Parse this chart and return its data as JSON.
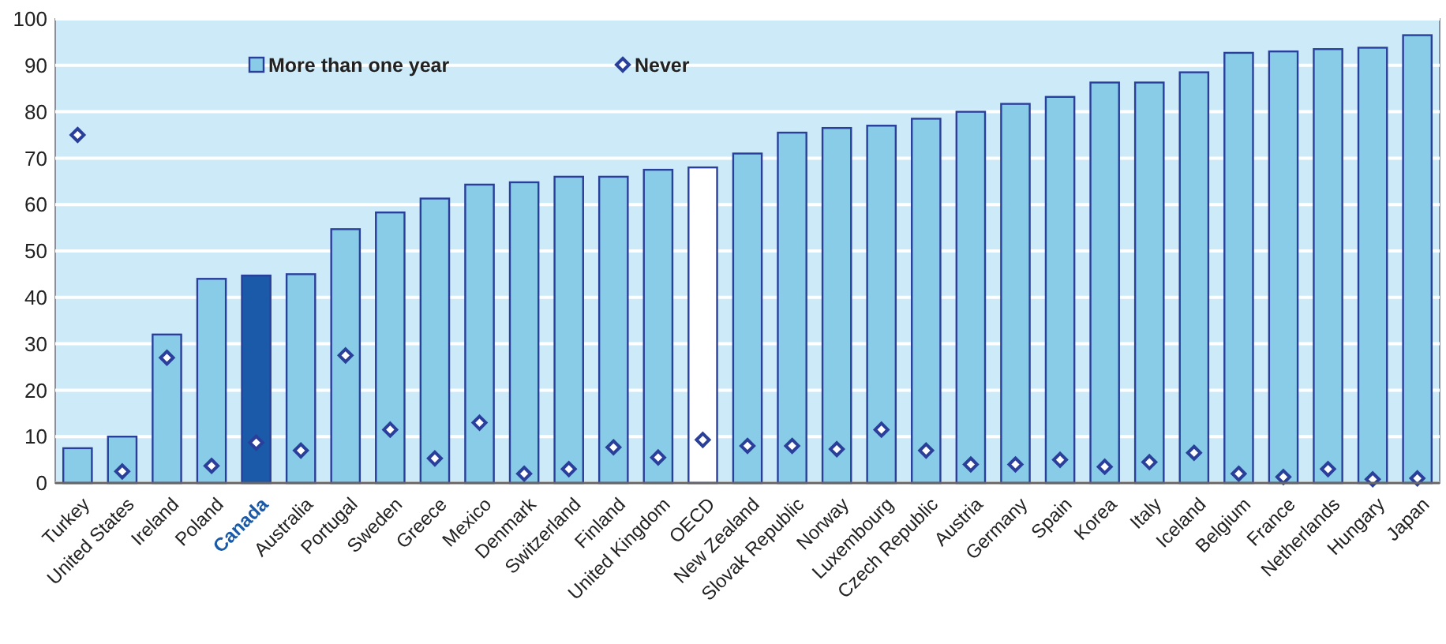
{
  "chart_data": {
    "type": "bar",
    "categories": [
      "Turkey",
      "United States",
      "Ireland",
      "Poland",
      "Canada",
      "Australia",
      "Portugal",
      "Sweden",
      "Greece",
      "Mexico",
      "Denmark",
      "Switzerland",
      "Finland",
      "United Kingdom",
      "OECD",
      "New Zealand",
      "Slovak Republic",
      "Norway",
      "Luxembourg",
      "Czech Republic",
      "Austria",
      "Germany",
      "Spain",
      "Korea",
      "Italy",
      "Iceland",
      "Belgium",
      "France",
      "Netherlands",
      "Hungary",
      "Japan"
    ],
    "series": [
      {
        "name": "More than one year",
        "color": "#89cce8",
        "colors": [
          "#89cce8",
          "#89cce8",
          "#89cce8",
          "#89cce8",
          "#1a5aa8",
          "#89cce8",
          "#89cce8",
          "#89cce8",
          "#89cce8",
          "#89cce8",
          "#89cce8",
          "#89cce8",
          "#89cce8",
          "#89cce8",
          "#ffffff",
          "#89cce8",
          "#89cce8",
          "#89cce8",
          "#89cce8",
          "#89cce8",
          "#89cce8",
          "#89cce8",
          "#89cce8",
          "#89cce8",
          "#89cce8",
          "#89cce8",
          "#89cce8",
          "#89cce8",
          "#89cce8",
          "#89cce8",
          "#89cce8"
        ],
        "values": [
          7.5,
          10,
          32,
          44,
          44.7,
          45,
          54.7,
          58.3,
          61.3,
          64.3,
          64.8,
          66,
          66,
          67.5,
          68,
          71,
          75.5,
          76.5,
          77,
          78.5,
          80,
          81.7,
          83.2,
          86.3,
          86.3,
          88.5,
          92.7,
          93,
          93.5,
          93.8,
          96.5
        ]
      },
      {
        "name": "Never",
        "type": "scatter",
        "color": "#2a3f9a",
        "marker": "diamond",
        "values": [
          75,
          2.5,
          27,
          3.7,
          8.7,
          7,
          27.5,
          11.5,
          5.3,
          13,
          2,
          3,
          7.7,
          5.5,
          9.3,
          8,
          8,
          7.3,
          11.5,
          7,
          4,
          4,
          5,
          3.5,
          4.5,
          6.5,
          2,
          1.3,
          3,
          0.8,
          1
        ]
      }
    ],
    "ylim": [
      0,
      100
    ],
    "yticks": [
      0,
      10,
      20,
      30,
      40,
      50,
      60,
      70,
      80,
      90,
      100
    ],
    "grid": "y",
    "legend": "top"
  }
}
